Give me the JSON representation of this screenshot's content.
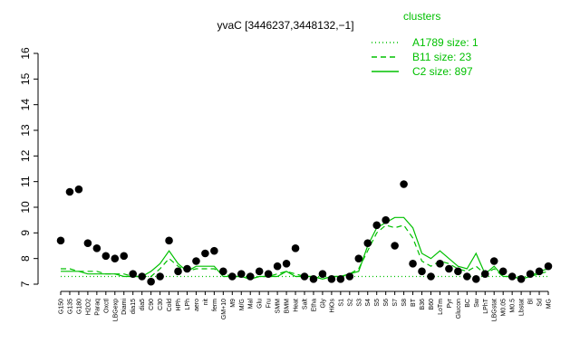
{
  "chart_data": {
    "type": "line",
    "title": "yvaC [3446237,3448132,−1]",
    "legend_title": "clusters",
    "categories": [
      "G150",
      "G135",
      "G180",
      "H2O2",
      "Paraq",
      "Oxctl",
      "LBGexp",
      "Diami",
      "dia15",
      "dia5",
      "C90",
      "C30",
      "Cold",
      "HPh",
      "LPh",
      "aero",
      "nit",
      "ferm",
      "GM+10",
      "M9",
      "M/G",
      "Mal",
      "Glu",
      "Fru",
      "SMM",
      "BMM",
      "Heat",
      "Salt",
      "Etha",
      "Gly",
      "HiOs",
      "S1",
      "S2",
      "S3",
      "S4",
      "S5",
      "S6",
      "S7",
      "S8",
      "BT",
      "B36",
      "B60",
      "LoTm",
      "Pyr",
      "Glucon",
      "BC",
      "Sw",
      "LPhT",
      "LBGstat",
      "M0.05",
      "M0.5",
      "Lbstat",
      "Bl",
      "Sd",
      "MG"
    ],
    "values": [
      8.7,
      10.6,
      10.7,
      8.6,
      8.4,
      8.1,
      8.0,
      8.1,
      7.4,
      7.3,
      7.1,
      7.3,
      8.7,
      7.5,
      7.6,
      7.9,
      8.2,
      8.3,
      7.5,
      7.3,
      7.4,
      7.3,
      7.5,
      7.4,
      7.7,
      7.8,
      8.4,
      7.3,
      7.2,
      7.4,
      7.2,
      7.2,
      7.3,
      8.0,
      8.6,
      9.3,
      9.5,
      8.5,
      10.9,
      7.8,
      7.5,
      7.3,
      7.8,
      7.6,
      7.5,
      7.3,
      7.2,
      7.4,
      7.9,
      7.5,
      7.3,
      7.2,
      7.4,
      7.5,
      7.7
    ],
    "color": "#000000",
    "series": [
      {
        "name": "A1789 size: 1",
        "color": "#00c000",
        "dash": "dotted",
        "values": [
          7.3,
          7.3,
          7.3,
          7.3,
          7.3,
          7.3,
          7.3,
          7.3,
          7.3,
          7.3,
          7.3,
          7.3,
          7.3,
          7.3,
          7.3,
          7.3,
          7.3,
          7.3,
          7.3,
          7.3,
          7.3,
          7.3,
          7.3,
          7.3,
          7.3,
          7.3,
          7.3,
          7.3,
          7.3,
          7.3,
          7.3,
          7.3,
          7.3,
          7.3,
          7.3,
          7.3,
          7.3,
          7.3,
          7.3,
          7.3,
          7.3,
          7.3,
          7.3,
          7.3,
          7.3,
          7.3,
          7.3,
          7.3,
          7.3,
          7.3,
          7.3,
          7.3,
          7.3,
          7.3,
          7.3
        ]
      },
      {
        "name": "B11 size: 23",
        "color": "#00c000",
        "dash": "dashed",
        "values": [
          7.6,
          7.6,
          7.5,
          7.5,
          7.5,
          7.4,
          7.4,
          7.4,
          7.3,
          7.3,
          7.3,
          7.6,
          8.0,
          7.7,
          7.5,
          7.6,
          7.6,
          7.6,
          7.4,
          7.3,
          7.3,
          7.2,
          7.3,
          7.3,
          7.4,
          7.5,
          7.4,
          7.3,
          7.3,
          7.2,
          7.3,
          7.3,
          7.4,
          7.6,
          8.3,
          9.0,
          9.3,
          9.2,
          9.3,
          8.8,
          7.9,
          7.7,
          7.9,
          7.8,
          7.6,
          7.5,
          7.7,
          7.4,
          7.6,
          7.3,
          7.3,
          7.2,
          7.3,
          7.4,
          7.5
        ]
      },
      {
        "name": "C2 size: 897",
        "color": "#00c000",
        "dash": "solid",
        "values": [
          7.5,
          7.5,
          7.5,
          7.4,
          7.4,
          7.4,
          7.4,
          7.3,
          7.3,
          7.3,
          7.5,
          7.8,
          8.3,
          7.8,
          7.5,
          7.7,
          7.7,
          7.7,
          7.3,
          7.3,
          7.3,
          7.2,
          7.3,
          7.3,
          7.3,
          7.5,
          7.3,
          7.3,
          7.3,
          7.2,
          7.3,
          7.3,
          7.4,
          7.5,
          8.5,
          9.2,
          9.4,
          9.6,
          9.6,
          9.2,
          8.2,
          8.0,
          8.3,
          8.0,
          7.7,
          7.6,
          8.2,
          7.4,
          7.7,
          7.3,
          7.3,
          7.2,
          7.3,
          7.5,
          7.6
        ]
      }
    ],
    "ylim": [
      7,
      16
    ],
    "yticks": [
      7,
      8,
      9,
      10,
      11,
      12,
      13,
      14,
      15,
      16
    ]
  }
}
